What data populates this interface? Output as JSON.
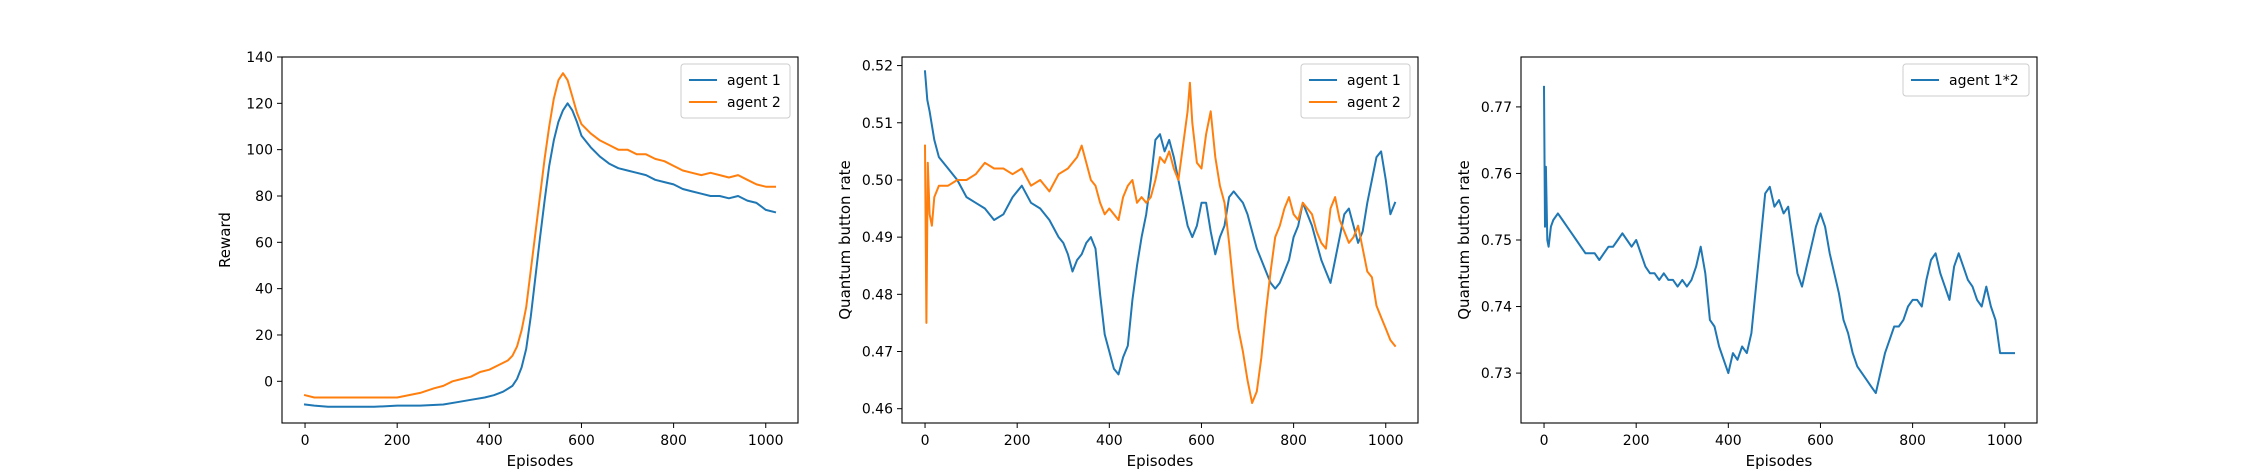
{
  "colors": {
    "series_1": "#1f77b4",
    "series_2": "#ff7f0e",
    "axes": "#000000",
    "background": "#ffffff"
  },
  "chart_data": [
    {
      "type": "line",
      "xlabel": "Episodes",
      "ylabel": "Reward",
      "xlim": [
        -50,
        1070
      ],
      "ylim": [
        -18,
        140
      ],
      "xticks": [
        0,
        200,
        400,
        600,
        800,
        1000
      ],
      "yticks": [
        0,
        20,
        40,
        60,
        80,
        100,
        120,
        140
      ],
      "legend_position": "upper-right",
      "grid": false,
      "series": [
        {
          "name": "agent 1",
          "color": "#1f77b4",
          "x": [
            0,
            20,
            50,
            100,
            150,
            200,
            250,
            300,
            330,
            360,
            390,
            410,
            430,
            450,
            460,
            470,
            480,
            490,
            500,
            510,
            520,
            530,
            540,
            550,
            560,
            570,
            580,
            590,
            600,
            620,
            640,
            660,
            680,
            700,
            720,
            740,
            760,
            780,
            800,
            820,
            840,
            860,
            880,
            900,
            920,
            940,
            960,
            980,
            1000,
            1020
          ],
          "y": [
            -10,
            -10.5,
            -11,
            -11,
            -11,
            -10.5,
            -10.5,
            -10,
            -9,
            -8,
            -7,
            -6,
            -4.5,
            -2,
            1,
            6,
            14,
            28,
            45,
            62,
            78,
            93,
            104,
            112,
            117,
            120,
            117,
            112,
            106,
            101,
            97,
            94,
            92,
            91,
            90,
            89,
            87,
            86,
            85,
            83,
            82,
            81,
            80,
            80,
            79,
            80,
            78,
            77,
            74,
            73
          ]
        },
        {
          "name": "agent 2",
          "color": "#ff7f0e",
          "x": [
            0,
            20,
            50,
            100,
            150,
            200,
            250,
            280,
            300,
            320,
            340,
            360,
            380,
            400,
            420,
            440,
            450,
            460,
            470,
            480,
            490,
            500,
            510,
            520,
            530,
            540,
            550,
            560,
            570,
            580,
            590,
            600,
            620,
            640,
            660,
            680,
            700,
            720,
            740,
            760,
            780,
            800,
            820,
            840,
            860,
            880,
            900,
            920,
            940,
            960,
            980,
            1000,
            1020
          ],
          "y": [
            -6,
            -7,
            -7,
            -7,
            -7,
            -7,
            -5,
            -3,
            -2,
            0,
            1,
            2,
            4,
            5,
            7,
            9,
            11,
            15,
            22,
            32,
            48,
            64,
            80,
            96,
            110,
            122,
            130,
            133,
            130,
            123,
            116,
            111,
            107,
            104,
            102,
            100,
            100,
            98,
            98,
            96,
            95,
            93,
            91,
            90,
            89,
            90,
            89,
            88,
            89,
            87,
            85,
            84,
            84
          ]
        }
      ]
    },
    {
      "type": "line",
      "xlabel": "Episodes",
      "ylabel": "Quantum button rate",
      "xlim": [
        -50,
        1070
      ],
      "ylim": [
        0.4575,
        0.5215
      ],
      "xticks": [
        0,
        200,
        400,
        600,
        800,
        1000
      ],
      "yticks": [
        0.46,
        0.47,
        0.48,
        0.49,
        0.5,
        0.51,
        0.52
      ],
      "legend_position": "upper-right",
      "grid": false,
      "series": [
        {
          "name": "agent 1",
          "color": "#1f77b4",
          "x": [
            0,
            5,
            10,
            20,
            30,
            50,
            70,
            90,
            110,
            130,
            150,
            170,
            190,
            210,
            230,
            250,
            270,
            290,
            300,
            310,
            320,
            330,
            340,
            350,
            360,
            370,
            380,
            390,
            400,
            410,
            420,
            430,
            440,
            450,
            460,
            470,
            480,
            490,
            500,
            510,
            520,
            530,
            540,
            550,
            560,
            570,
            580,
            590,
            600,
            610,
            620,
            630,
            640,
            650,
            660,
            670,
            680,
            690,
            700,
            710,
            720,
            730,
            740,
            750,
            760,
            770,
            780,
            790,
            800,
            810,
            820,
            830,
            840,
            850,
            860,
            870,
            880,
            890,
            900,
            910,
            920,
            930,
            940,
            950,
            960,
            970,
            980,
            990,
            1000,
            1010,
            1020
          ],
          "y": [
            0.519,
            0.514,
            0.512,
            0.507,
            0.504,
            0.502,
            0.5,
            0.497,
            0.496,
            0.495,
            0.493,
            0.494,
            0.497,
            0.499,
            0.496,
            0.495,
            0.493,
            0.49,
            0.489,
            0.487,
            0.484,
            0.486,
            0.487,
            0.489,
            0.49,
            0.488,
            0.48,
            0.473,
            0.47,
            0.467,
            0.466,
            0.469,
            0.471,
            0.479,
            0.485,
            0.49,
            0.494,
            0.5,
            0.507,
            0.508,
            0.505,
            0.507,
            0.504,
            0.5,
            0.496,
            0.492,
            0.49,
            0.492,
            0.496,
            0.496,
            0.491,
            0.487,
            0.49,
            0.492,
            0.497,
            0.498,
            0.497,
            0.496,
            0.494,
            0.491,
            0.488,
            0.486,
            0.484,
            0.482,
            0.481,
            0.482,
            0.484,
            0.486,
            0.49,
            0.492,
            0.496,
            0.494,
            0.492,
            0.489,
            0.486,
            0.484,
            0.482,
            0.486,
            0.49,
            0.494,
            0.495,
            0.492,
            0.489,
            0.491,
            0.496,
            0.5,
            0.504,
            0.505,
            0.5,
            0.494,
            0.496
          ]
        },
        {
          "name": "agent 2",
          "color": "#ff7f0e",
          "x": [
            0,
            3,
            6,
            10,
            15,
            20,
            30,
            50,
            70,
            90,
            110,
            130,
            150,
            170,
            190,
            210,
            230,
            250,
            270,
            290,
            310,
            330,
            340,
            350,
            360,
            370,
            380,
            390,
            400,
            410,
            420,
            430,
            440,
            450,
            460,
            470,
            480,
            490,
            500,
            510,
            520,
            530,
            540,
            550,
            560,
            570,
            575,
            580,
            590,
            600,
            610,
            620,
            630,
            640,
            650,
            660,
            670,
            680,
            690,
            700,
            710,
            720,
            730,
            740,
            750,
            760,
            770,
            780,
            790,
            800,
            810,
            820,
            830,
            840,
            850,
            860,
            870,
            880,
            890,
            900,
            910,
            920,
            930,
            940,
            950,
            960,
            970,
            980,
            990,
            1000,
            1010,
            1020
          ],
          "y": [
            0.506,
            0.475,
            0.503,
            0.494,
            0.492,
            0.497,
            0.499,
            0.499,
            0.5,
            0.5,
            0.501,
            0.503,
            0.502,
            0.502,
            0.501,
            0.502,
            0.499,
            0.5,
            0.498,
            0.501,
            0.502,
            0.504,
            0.506,
            0.503,
            0.5,
            0.499,
            0.496,
            0.494,
            0.495,
            0.494,
            0.493,
            0.497,
            0.499,
            0.5,
            0.496,
            0.497,
            0.496,
            0.497,
            0.5,
            0.504,
            0.503,
            0.505,
            0.502,
            0.5,
            0.506,
            0.512,
            0.517,
            0.51,
            0.503,
            0.502,
            0.508,
            0.512,
            0.504,
            0.499,
            0.496,
            0.489,
            0.481,
            0.474,
            0.47,
            0.465,
            0.461,
            0.463,
            0.469,
            0.477,
            0.484,
            0.49,
            0.492,
            0.495,
            0.497,
            0.494,
            0.493,
            0.496,
            0.495,
            0.494,
            0.491,
            0.489,
            0.488,
            0.495,
            0.497,
            0.493,
            0.491,
            0.489,
            0.49,
            0.492,
            0.488,
            0.484,
            0.483,
            0.478,
            0.476,
            0.474,
            0.472,
            0.471
          ]
        }
      ]
    },
    {
      "type": "line",
      "xlabel": "Episodes",
      "ylabel": "Quantum button rate",
      "xlim": [
        -50,
        1070
      ],
      "ylim": [
        0.7225,
        0.7775
      ],
      "xticks": [
        0,
        200,
        400,
        600,
        800,
        1000
      ],
      "yticks": [
        0.73,
        0.74,
        0.75,
        0.76,
        0.77
      ],
      "legend_position": "upper-right",
      "grid": false,
      "series": [
        {
          "name": "agent 1*2",
          "color": "#1f77b4",
          "x": [
            0,
            2,
            4,
            7,
            10,
            15,
            20,
            30,
            40,
            50,
            60,
            70,
            80,
            90,
            100,
            110,
            120,
            130,
            140,
            150,
            160,
            170,
            180,
            190,
            200,
            210,
            220,
            230,
            240,
            250,
            260,
            270,
            280,
            290,
            300,
            310,
            320,
            330,
            340,
            350,
            360,
            370,
            380,
            390,
            400,
            410,
            420,
            430,
            440,
            450,
            460,
            470,
            480,
            490,
            500,
            510,
            520,
            530,
            540,
            550,
            560,
            570,
            580,
            590,
            600,
            610,
            620,
            630,
            640,
            650,
            660,
            670,
            680,
            690,
            700,
            710,
            720,
            730,
            740,
            750,
            760,
            770,
            780,
            790,
            800,
            810,
            820,
            830,
            840,
            850,
            860,
            870,
            880,
            890,
            900,
            910,
            920,
            930,
            940,
            950,
            960,
            970,
            980,
            990,
            1000,
            1010,
            1020
          ],
          "y": [
            0.773,
            0.752,
            0.761,
            0.75,
            0.749,
            0.752,
            0.753,
            0.754,
            0.753,
            0.752,
            0.751,
            0.75,
            0.749,
            0.748,
            0.748,
            0.748,
            0.747,
            0.748,
            0.749,
            0.749,
            0.75,
            0.751,
            0.75,
            0.749,
            0.75,
            0.748,
            0.746,
            0.745,
            0.745,
            0.744,
            0.745,
            0.744,
            0.744,
            0.743,
            0.744,
            0.743,
            0.744,
            0.746,
            0.749,
            0.745,
            0.738,
            0.737,
            0.734,
            0.732,
            0.73,
            0.733,
            0.732,
            0.734,
            0.733,
            0.736,
            0.743,
            0.75,
            0.757,
            0.758,
            0.755,
            0.756,
            0.754,
            0.755,
            0.75,
            0.745,
            0.743,
            0.746,
            0.749,
            0.752,
            0.754,
            0.752,
            0.748,
            0.745,
            0.742,
            0.738,
            0.736,
            0.733,
            0.731,
            0.73,
            0.729,
            0.728,
            0.727,
            0.73,
            0.733,
            0.735,
            0.737,
            0.737,
            0.738,
            0.74,
            0.741,
            0.741,
            0.74,
            0.744,
            0.747,
            0.748,
            0.745,
            0.743,
            0.741,
            0.746,
            0.748,
            0.746,
            0.744,
            0.743,
            0.741,
            0.74,
            0.743,
            0.74,
            0.738,
            0.733,
            0.733,
            0.733,
            0.733
          ]
        }
      ]
    }
  ]
}
